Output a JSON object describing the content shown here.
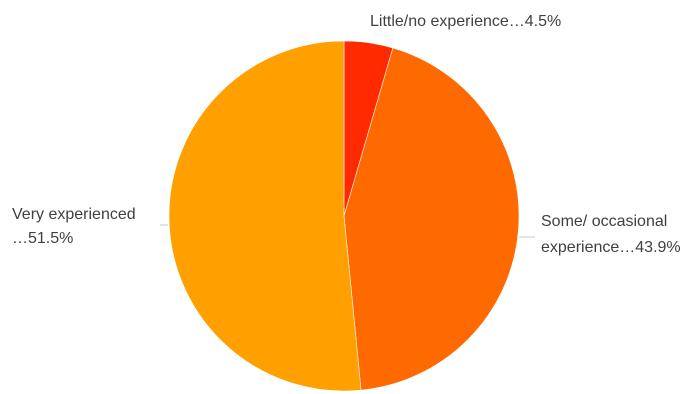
{
  "chart_data": {
    "type": "pie",
    "title": "",
    "start_angle_deg": 0,
    "direction": "clockwise",
    "legend": "none",
    "slices": [
      {
        "label": "Little/no experience",
        "value": 4.5,
        "label_lines": [
          "Little/no experience…4.5%"
        ],
        "color": "#ff2a00"
      },
      {
        "label": "Some/ occasional experience",
        "value": 43.9,
        "label_lines": [
          "Some/ occasional",
          "experience…43.9%"
        ],
        "color": "#ff6a00"
      },
      {
        "label": "Very experienced",
        "value": 51.5,
        "label_lines": [
          "Very experienced",
          "…51.5%"
        ],
        "color": "#ff9f00"
      }
    ]
  }
}
